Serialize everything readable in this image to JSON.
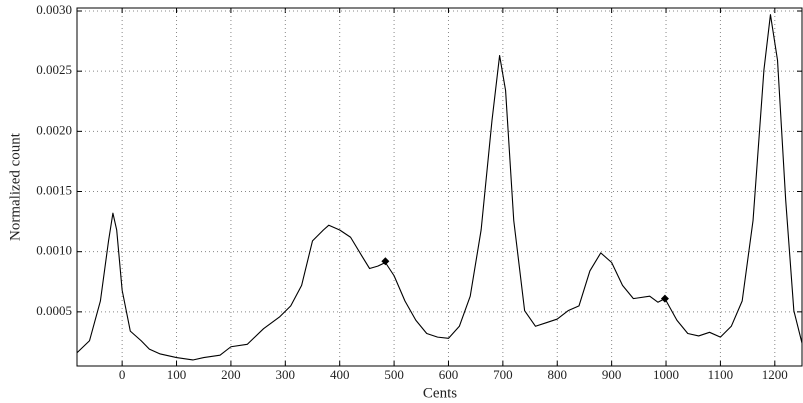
{
  "chart_data": {
    "type": "line",
    "x_label": "Cents",
    "y_label": "Normalized count",
    "x": [
      -83,
      -60,
      -40,
      -25,
      -17,
      -10,
      0,
      15,
      35,
      50,
      70,
      100,
      130,
      150,
      180,
      200,
      230,
      260,
      290,
      310,
      330,
      350,
      370,
      380,
      400,
      420,
      440,
      455,
      470,
      484,
      500,
      520,
      540,
      560,
      580,
      600,
      620,
      640,
      660,
      680,
      694,
      705,
      720,
      740,
      760,
      780,
      800,
      820,
      840,
      860,
      880,
      900,
      920,
      940,
      970,
      985,
      998,
      1020,
      1040,
      1060,
      1080,
      1100,
      1120,
      1140,
      1160,
      1180,
      1192,
      1205,
      1220,
      1235,
      1250
    ],
    "series": [
      {
        "color": "#000000",
        "values": [
          0.00016,
          0.00026,
          0.00059,
          0.00109,
          0.00132,
          0.00118,
          0.00068,
          0.00034,
          0.00026,
          0.00019,
          0.00015,
          0.00012,
          0.0001,
          0.00012,
          0.00014,
          0.00021,
          0.00023,
          0.00036,
          0.00046,
          0.00055,
          0.00072,
          0.00109,
          0.00118,
          0.00122,
          0.00118,
          0.00112,
          0.00097,
          0.00086,
          0.00088,
          0.00091,
          0.0008,
          0.00059,
          0.00043,
          0.00032,
          0.00029,
          0.00028,
          0.00038,
          0.00063,
          0.00118,
          0.00209,
          0.00263,
          0.00234,
          0.00126,
          0.00051,
          0.00038,
          0.00041,
          0.00044,
          0.00051,
          0.00055,
          0.00084,
          0.00099,
          0.00091,
          0.00072,
          0.00061,
          0.00063,
          0.00058,
          0.00061,
          0.00043,
          0.00032,
          0.0003,
          0.00033,
          0.00029,
          0.00038,
          0.00059,
          0.00126,
          0.00251,
          0.00297,
          0.00259,
          0.00143,
          0.00051,
          0.00024
        ]
      }
    ],
    "markers": {
      "color": "#000000",
      "x": [
        484,
        998
      ],
      "y": [
        0.00092,
        0.00061
      ]
    },
    "xlim": [
      -83,
      1250
    ],
    "ylim": [
      5e-05,
      0.003025
    ],
    "xticks": [
      0,
      100,
      200,
      300,
      400,
      500,
      600,
      700,
      800,
      900,
      1000,
      1100,
      1200
    ],
    "yticks": [
      0.0005,
      {
        "value": 0.001,
        "label": "0.0010"
      },
      0.0015,
      {
        "value": 0.002,
        "label": "0.0020"
      },
      0.0025,
      {
        "value": 0.003,
        "label": "0.0030"
      }
    ],
    "grid": true
  }
}
